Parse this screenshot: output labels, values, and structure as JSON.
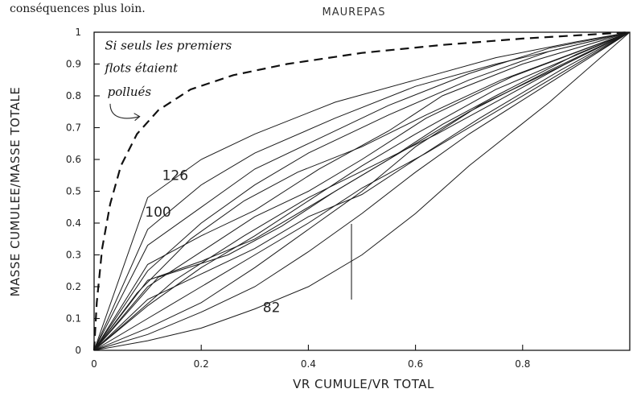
{
  "page_text": "conséquences plus loin.",
  "chart_data": {
    "type": "line",
    "title": "MAUREPAS",
    "xlabel": "VR CUMULE/VR TOTAL",
    "ylabel": "MASSE CUMULEE/MASSE TOTALE",
    "xlim": [
      0,
      1
    ],
    "ylim": [
      0,
      1
    ],
    "x_ticks": [
      0,
      0.2,
      0.4,
      0.6,
      0.8
    ],
    "x_tick_labels": [
      "0",
      "0.2",
      "0.4",
      "0.6",
      "0.8"
    ],
    "y_ticks": [
      0,
      0.1,
      0.2,
      0.3,
      0.4,
      0.5,
      0.6,
      0.7,
      0.8,
      0.9,
      1
    ],
    "y_tick_labels": [
      "0",
      "0.1",
      "0.2",
      "0.3",
      "0.4",
      "0.5",
      "0.6",
      "0.7",
      "0.8",
      "0.9",
      "1"
    ],
    "grid": false,
    "legend": "none",
    "annotations": [
      {
        "text": "Si seuls les premiers",
        "x": 0.02,
        "y": 0.945
      },
      {
        "text": "flots étaient",
        "x": 0.02,
        "y": 0.875
      },
      {
        "text": "pollués",
        "x": 0.025,
        "y": 0.8
      }
    ],
    "hypothetical_curve": {
      "style": "dashed",
      "points": [
        [
          0,
          0
        ],
        [
          0.005,
          0.15
        ],
        [
          0.015,
          0.32
        ],
        [
          0.03,
          0.46
        ],
        [
          0.05,
          0.58
        ],
        [
          0.08,
          0.68
        ],
        [
          0.12,
          0.755
        ],
        [
          0.18,
          0.82
        ],
        [
          0.26,
          0.865
        ],
        [
          0.36,
          0.9
        ],
        [
          0.5,
          0.935
        ],
        [
          0.65,
          0.96
        ],
        [
          0.8,
          0.98
        ],
        [
          1,
          1
        ]
      ]
    },
    "series": [
      {
        "name": "126",
        "points": [
          [
            0,
            0
          ],
          [
            0.1,
            0.48
          ],
          [
            0.2,
            0.6
          ],
          [
            0.3,
            0.68
          ],
          [
            0.45,
            0.78
          ],
          [
            0.6,
            0.85
          ],
          [
            0.75,
            0.92
          ],
          [
            0.9,
            0.97
          ],
          [
            1,
            1
          ]
        ]
      },
      {
        "name": "100",
        "points": [
          [
            0,
            0
          ],
          [
            0.1,
            0.38
          ],
          [
            0.2,
            0.52
          ],
          [
            0.3,
            0.62
          ],
          [
            0.45,
            0.73
          ],
          [
            0.6,
            0.83
          ],
          [
            0.75,
            0.9
          ],
          [
            0.9,
            0.96
          ],
          [
            1,
            1
          ]
        ]
      },
      {
        "name": "82",
        "points": [
          [
            0,
            0
          ],
          [
            0.1,
            0.03
          ],
          [
            0.2,
            0.07
          ],
          [
            0.3,
            0.13
          ],
          [
            0.4,
            0.2
          ],
          [
            0.5,
            0.3
          ],
          [
            0.6,
            0.43
          ],
          [
            0.7,
            0.58
          ],
          [
            0.85,
            0.78
          ],
          [
            1,
            1
          ]
        ]
      },
      {
        "points": [
          [
            0,
            0
          ],
          [
            0.1,
            0.33
          ],
          [
            0.2,
            0.45
          ],
          [
            0.3,
            0.57
          ],
          [
            0.4,
            0.65
          ],
          [
            0.55,
            0.77
          ],
          [
            0.7,
            0.87
          ],
          [
            0.85,
            0.95
          ],
          [
            1,
            1
          ]
        ]
      },
      {
        "points": [
          [
            0,
            0
          ],
          [
            0.1,
            0.25
          ],
          [
            0.2,
            0.4
          ],
          [
            0.3,
            0.52
          ],
          [
            0.4,
            0.62
          ],
          [
            0.55,
            0.74
          ],
          [
            0.7,
            0.85
          ],
          [
            0.85,
            0.94
          ],
          [
            1,
            1
          ]
        ]
      },
      {
        "points": [
          [
            0,
            0
          ],
          [
            0.1,
            0.27
          ],
          [
            0.2,
            0.36
          ],
          [
            0.3,
            0.44
          ],
          [
            0.42,
            0.57
          ],
          [
            0.55,
            0.69
          ],
          [
            0.65,
            0.8
          ],
          [
            0.8,
            0.9
          ],
          [
            1,
            1
          ]
        ]
      },
      {
        "points": [
          [
            0,
            0
          ],
          [
            0.1,
            0.2
          ],
          [
            0.2,
            0.31
          ],
          [
            0.3,
            0.42
          ],
          [
            0.4,
            0.5
          ],
          [
            0.5,
            0.6
          ],
          [
            0.62,
            0.73
          ],
          [
            0.78,
            0.86
          ],
          [
            1,
            1
          ]
        ]
      },
      {
        "points": [
          [
            0,
            0
          ],
          [
            0.1,
            0.14
          ],
          [
            0.2,
            0.26
          ],
          [
            0.3,
            0.36
          ],
          [
            0.4,
            0.47
          ],
          [
            0.5,
            0.58
          ],
          [
            0.6,
            0.68
          ],
          [
            0.75,
            0.82
          ],
          [
            1,
            1
          ]
        ]
      },
      {
        "points": [
          [
            0,
            0
          ],
          [
            0.1,
            0.1
          ],
          [
            0.2,
            0.2
          ],
          [
            0.3,
            0.3
          ],
          [
            0.4,
            0.4
          ],
          [
            0.5,
            0.51
          ],
          [
            0.62,
            0.62
          ],
          [
            0.78,
            0.78
          ],
          [
            1,
            1
          ]
        ]
      },
      {
        "points": [
          [
            0,
            0
          ],
          [
            0.1,
            0.07
          ],
          [
            0.2,
            0.15
          ],
          [
            0.3,
            0.26
          ],
          [
            0.4,
            0.38
          ],
          [
            0.5,
            0.5
          ],
          [
            0.6,
            0.64
          ],
          [
            0.72,
            0.77
          ],
          [
            0.88,
            0.9
          ],
          [
            1,
            1
          ]
        ]
      },
      {
        "points": [
          [
            0,
            0
          ],
          [
            0.1,
            0.05
          ],
          [
            0.2,
            0.12
          ],
          [
            0.3,
            0.2
          ],
          [
            0.4,
            0.31
          ],
          [
            0.5,
            0.43
          ],
          [
            0.6,
            0.56
          ],
          [
            0.7,
            0.68
          ],
          [
            0.85,
            0.84
          ],
          [
            1,
            1
          ]
        ]
      },
      {
        "points": [
          [
            0,
            0
          ],
          [
            0.1,
            0.16
          ],
          [
            0.2,
            0.24
          ],
          [
            0.3,
            0.32
          ],
          [
            0.4,
            0.42
          ],
          [
            0.5,
            0.49
          ],
          [
            0.6,
            0.6
          ],
          [
            0.72,
            0.73
          ],
          [
            0.87,
            0.88
          ],
          [
            1,
            1
          ]
        ]
      },
      {
        "points": [
          [
            0,
            0
          ],
          [
            0.1,
            0.22
          ],
          [
            0.2,
            0.28
          ],
          [
            0.3,
            0.35
          ],
          [
            0.4,
            0.45
          ],
          [
            0.5,
            0.55
          ],
          [
            0.6,
            0.65
          ],
          [
            0.7,
            0.75
          ],
          [
            0.85,
            0.88
          ],
          [
            1,
            1
          ]
        ]
      },
      {
        "points": [
          [
            0,
            0
          ],
          [
            0.12,
            0.23
          ],
          [
            0.25,
            0.3
          ],
          [
            0.35,
            0.39
          ],
          [
            0.45,
            0.5
          ],
          [
            0.55,
            0.6
          ],
          [
            0.65,
            0.71
          ],
          [
            0.75,
            0.8
          ],
          [
            0.9,
            0.93
          ],
          [
            1,
            1
          ]
        ]
      },
      {
        "points": [
          [
            0,
            0
          ],
          [
            0.08,
            0.18
          ],
          [
            0.18,
            0.35
          ],
          [
            0.28,
            0.47
          ],
          [
            0.38,
            0.56
          ],
          [
            0.5,
            0.64
          ],
          [
            0.62,
            0.74
          ],
          [
            0.76,
            0.85
          ],
          [
            1,
            1
          ]
        ]
      },
      {
        "points": [
          [
            0,
            0
          ],
          [
            0.15,
            0.22
          ],
          [
            0.28,
            0.36
          ],
          [
            0.4,
            0.48
          ],
          [
            0.52,
            0.58
          ],
          [
            0.64,
            0.68
          ],
          [
            0.76,
            0.79
          ],
          [
            0.88,
            0.9
          ],
          [
            1,
            1
          ]
        ]
      }
    ]
  }
}
